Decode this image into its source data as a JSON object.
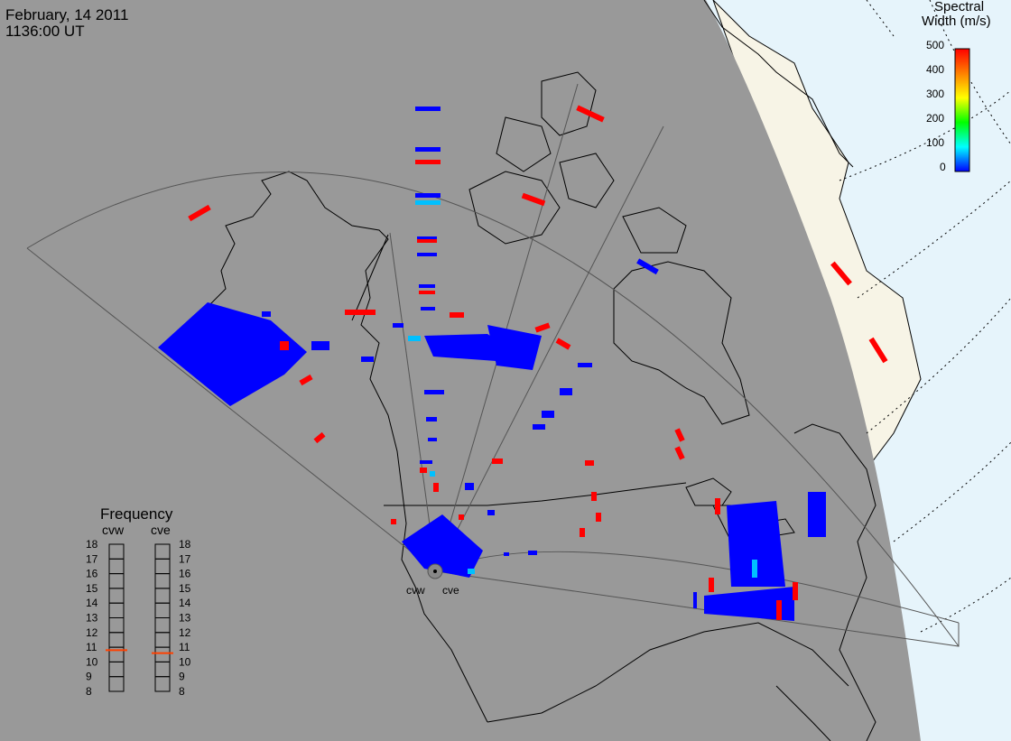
{
  "header": {
    "date": "February, 14 2011",
    "time": "1136:00 UT"
  },
  "colorbar": {
    "title_line1": "Spectral",
    "title_line2": "Width (m/s)",
    "ticks": [
      "500",
      "400",
      "300",
      "200",
      "100",
      "0"
    ],
    "colors": [
      "#0000ff",
      "#00ffff",
      "#00ff00",
      "#ffff00",
      "#ff8000",
      "#ff0000"
    ]
  },
  "frequency_panel": {
    "title": "Frequency",
    "radar_a": "cvw",
    "radar_b": "cve",
    "ticks": [
      "18",
      "17",
      "16",
      "15",
      "14",
      "13",
      "12",
      "11",
      "10",
      "9",
      "8"
    ],
    "current_a_mhz": 10.8,
    "current_b_mhz": 10.6
  },
  "radars": {
    "west": "cvw",
    "east": "cve"
  },
  "colors": {
    "night": "#999999",
    "day_land": "#f7f4e6",
    "day_sea": "#e6f4fb",
    "low_width": "#0000ff",
    "high_width": "#ff0000",
    "mid_width": "#00c0ff"
  }
}
